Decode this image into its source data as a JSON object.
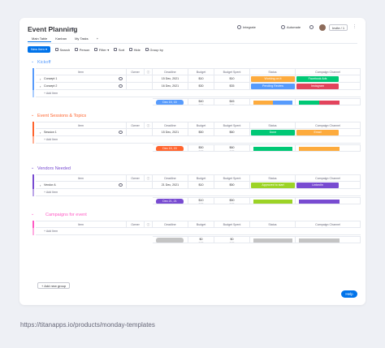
{
  "header": {
    "title": "Event Planning",
    "integrate": "Integrate",
    "automate": "Automate",
    "invite": "Invite / 1"
  },
  "tabs": [
    {
      "label": "Main Table"
    },
    {
      "label": "Kanban"
    },
    {
      "label": "My Tasks"
    },
    {
      "label": "+"
    }
  ],
  "toolbar": {
    "new_item": "New Item",
    "search": "Search",
    "person": "Person",
    "filter": "Filter",
    "sort": "Sort",
    "hide": "Hide",
    "group_by": "Group by"
  },
  "columns": {
    "item": "Item",
    "owner": "Owner",
    "deadline": "Deadline",
    "budget": "Budget",
    "budget_spent": "Budget Spent",
    "status": "Status",
    "campaign_channel": "Campaign Channel"
  },
  "add_item": "+ Add Item",
  "groups": [
    {
      "title": "Kickoff",
      "color": "#579bfc",
      "rows": [
        {
          "item": "Concept 1",
          "deadline": "15 Dec, 2021",
          "budget": "$10",
          "spent": "$10",
          "status": "Working on it",
          "status_color": "#fdab3d",
          "channel": "Facebook Ads",
          "channel_color": "#00c875"
        },
        {
          "item": "Concept 2",
          "deadline": "16 Dec, 2021",
          "budget": "$30",
          "spent": "$35",
          "status": "Pending Review",
          "status_color": "#579bfc",
          "channel": "Instagram",
          "channel_color": "#e2445c"
        }
      ],
      "summary": {
        "deadline": "Dec 15, 15",
        "deadline_color": "#579bfc",
        "budget": "$40",
        "budget_label": "sum",
        "spent": "$45",
        "spent_label": "sum"
      }
    },
    {
      "title": "Event Sessions & Topics",
      "color": "#ff642e",
      "rows": [
        {
          "item": "Session 1",
          "deadline": "15 Dec, 2021",
          "budget": "$50",
          "spent": "$60",
          "status": "Done",
          "status_color": "#00c875",
          "channel": "Email",
          "channel_color": "#fdab3d"
        }
      ],
      "summary": {
        "deadline": "Dec 15, 15",
        "deadline_color": "#ff642e",
        "budget": "$50",
        "budget_label": "sum",
        "spent": "$60",
        "spent_label": "sum"
      }
    },
    {
      "title": "Vendors Needed",
      "color": "#784bd1",
      "rows": [
        {
          "item": "Vendor A",
          "deadline": "21 Dec, 2021",
          "budget": "$10",
          "spent": "$50",
          "status": "Approved to start",
          "status_color": "#9cd326",
          "channel": "LinkedIn",
          "channel_color": "#784bd1"
        }
      ],
      "summary": {
        "deadline": "Dec 21, 21",
        "deadline_color": "#784bd1",
        "budget": "$10",
        "budget_label": "sum",
        "spent": "$50",
        "spent_label": "sum"
      }
    },
    {
      "title": "Campaigns for event",
      "color": "#ff5ac4",
      "rows": [],
      "summary": {
        "deadline": "",
        "deadline_color": "#c4c4c4",
        "budget": "$0",
        "budget_label": "sum",
        "spent": "$0",
        "spent_label": "sum"
      }
    }
  ],
  "add_group": "+ Add new group",
  "help": "Help",
  "footer_url": "https://titanapps.io/products/monday-templates"
}
